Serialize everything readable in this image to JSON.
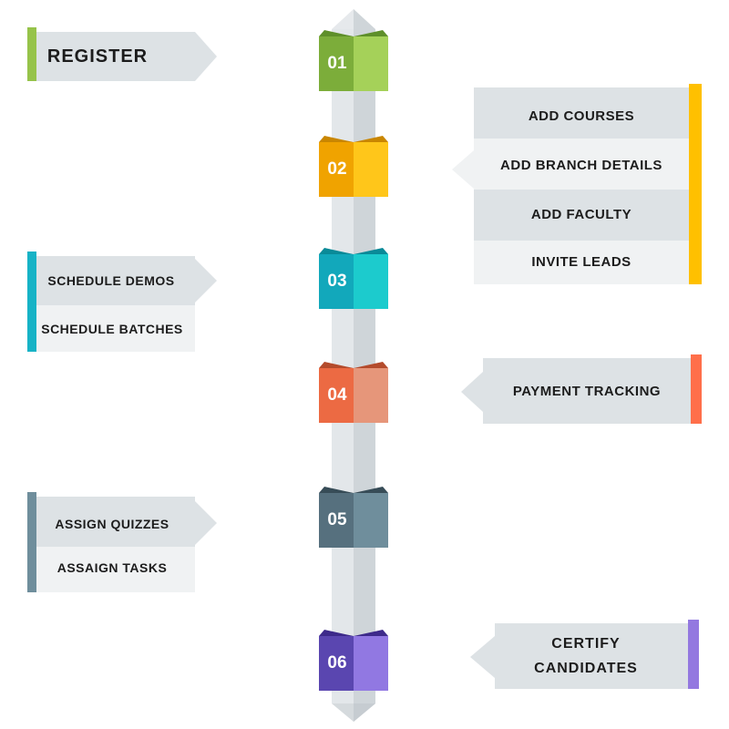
{
  "steps": [
    {
      "number": "01",
      "items": [
        "REGISTER"
      ],
      "accent": "#96c34a"
    },
    {
      "number": "02",
      "items": [
        "ADD COURSES",
        "ADD BRANCH DETAILS",
        "ADD FACULTY",
        "INVITE LEADS"
      ],
      "accent": "#ffc000"
    },
    {
      "number": "03",
      "items": [
        "SCHEDULE DEMOS",
        "SCHEDULE BATCHES"
      ],
      "accent": "#17b3c6"
    },
    {
      "number": "04",
      "items": [
        "PAYMENT TRACKING"
      ],
      "accent": "#ff6f4a"
    },
    {
      "number": "05",
      "items": [
        "ASSIGN QUIZZES",
        "ASSAIGN TASKS"
      ],
      "accent": "#6f8e9c"
    },
    {
      "number": "06",
      "items": [
        "CERTIFY CANDIDATES"
      ],
      "accent": "#9378e0"
    }
  ],
  "colors": {
    "panel_dark": "#dde2e5",
    "panel_light": "#f0f2f3",
    "spine_light": "#e3e7ea",
    "spine_dark": "#cfd5d9"
  }
}
